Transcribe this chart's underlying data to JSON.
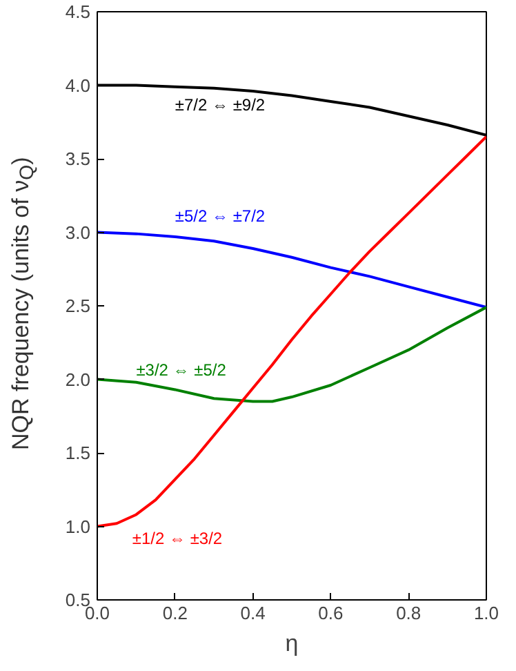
{
  "chart_data": {
    "type": "line",
    "xlabel": "η",
    "ylabel": "NQR frequency (units of ν$_{Q}$)",
    "xlim": [
      0,
      1
    ],
    "ylim": [
      0.5,
      4.5
    ],
    "xticks": [
      {
        "value": 0,
        "label": "0.0"
      },
      {
        "value": 0.2,
        "label": "0.2"
      },
      {
        "value": 0.4,
        "label": "0.4"
      },
      {
        "value": 0.6,
        "label": "0.6"
      },
      {
        "value": 0.8,
        "label": "0.8"
      },
      {
        "value": 1,
        "label": "1.0"
      }
    ],
    "yticks": [
      {
        "value": 0.5,
        "label": "0.5"
      },
      {
        "value": 1,
        "label": "1.0"
      },
      {
        "value": 1.5,
        "label": "1.5"
      },
      {
        "value": 2,
        "label": "2.0"
      },
      {
        "value": 2.5,
        "label": "2.5"
      },
      {
        "value": 3,
        "label": "3.0"
      },
      {
        "value": 3.5,
        "label": "3.5"
      },
      {
        "value": 4,
        "label": "4.0"
      },
      {
        "value": 4.5,
        "label": "4.5"
      }
    ],
    "grid": false,
    "legend": false,
    "marker": "none",
    "line_style": "solid",
    "series": [
      {
        "name": "±7/2 ⇔ ±9/2",
        "color": "#000000",
        "x": [
          0,
          0.1,
          0.2,
          0.3,
          0.4,
          0.5,
          0.6,
          0.7,
          0.8,
          0.9,
          1.0
        ],
        "values": [
          4.0,
          4.0,
          3.99,
          3.98,
          3.96,
          3.93,
          3.89,
          3.85,
          3.79,
          3.73,
          3.66
        ]
      },
      {
        "name": "±5/2 ⇔ ±7/2",
        "color": "#0000ff",
        "x": [
          0,
          0.1,
          0.2,
          0.3,
          0.4,
          0.5,
          0.6,
          0.7,
          0.8,
          0.9,
          1.0
        ],
        "values": [
          3.0,
          2.99,
          2.97,
          2.94,
          2.89,
          2.83,
          2.76,
          2.7,
          2.63,
          2.56,
          2.49
        ]
      },
      {
        "name": "±3/2 ⇔ ±5/2",
        "color": "#008000",
        "x": [
          0,
          0.1,
          0.2,
          0.3,
          0.4,
          0.45,
          0.5,
          0.6,
          0.7,
          0.8,
          0.9,
          1.0
        ],
        "values": [
          2.0,
          1.98,
          1.93,
          1.87,
          1.85,
          1.85,
          1.88,
          1.96,
          2.08,
          2.2,
          2.35,
          2.49
        ]
      },
      {
        "name": "±1/2 ⇔ ±3/2",
        "color": "#ff0000",
        "x": [
          0,
          0.05,
          0.1,
          0.15,
          0.2,
          0.25,
          0.3,
          0.35,
          0.4,
          0.45,
          0.5,
          0.55,
          0.6,
          0.65,
          0.7,
          0.75,
          0.8,
          0.85,
          0.9,
          0.95,
          1.0
        ],
        "values": [
          1.0,
          1.02,
          1.08,
          1.18,
          1.32,
          1.46,
          1.62,
          1.78,
          1.94,
          2.1,
          2.27,
          2.43,
          2.58,
          2.73,
          2.87,
          3.0,
          3.13,
          3.26,
          3.39,
          3.52,
          3.65
        ]
      }
    ]
  }
}
